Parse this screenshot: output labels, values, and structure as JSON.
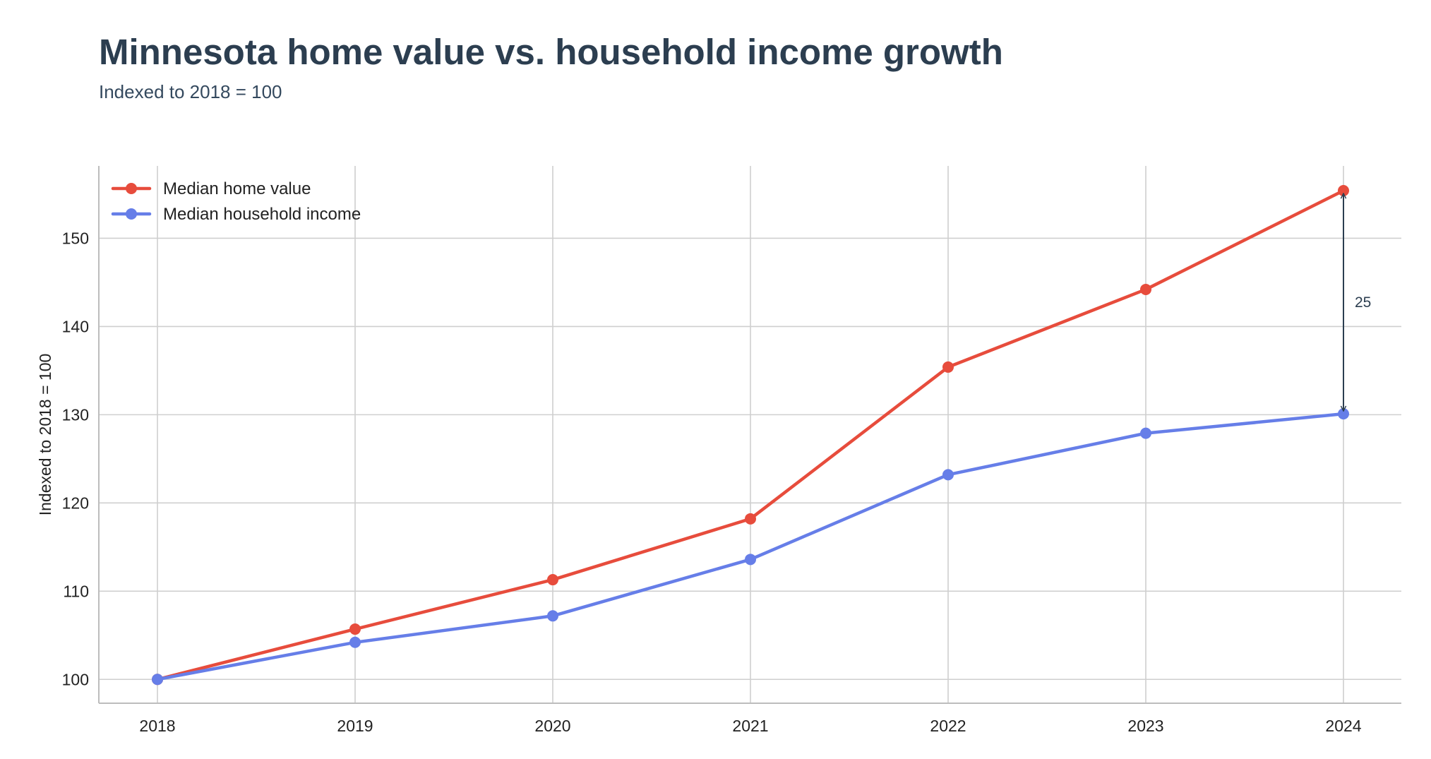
{
  "header": {
    "title": "Minnesota home value vs. household income growth",
    "subtitle": "Indexed to 2018 = 100"
  },
  "chart_data": {
    "type": "line",
    "title": "Minnesota home value vs. household income growth",
    "subtitle": "Indexed to 2018 = 100",
    "xlabel": "",
    "ylabel": "Indexed to 2018 = 100",
    "categories": [
      "2018",
      "2019",
      "2020",
      "2021",
      "2022",
      "2023",
      "2024"
    ],
    "series": [
      {
        "name": "Median home value",
        "color": "#e74c3c",
        "values": [
          100,
          105.7,
          111.3,
          118.2,
          135.4,
          144.2,
          155.4
        ]
      },
      {
        "name": "Median household income",
        "color": "#667ee8",
        "values": [
          100,
          104.2,
          107.2,
          113.6,
          123.2,
          127.9,
          130.1
        ]
      }
    ],
    "yticks": [
      100,
      110,
      120,
      130,
      140,
      150
    ],
    "ylim": [
      97.3,
      158.2
    ],
    "grid": true,
    "legend_position": "top-left",
    "annotation": {
      "label": "25",
      "category": "2024",
      "from_value": 155.4,
      "to_value": 130.1
    }
  }
}
